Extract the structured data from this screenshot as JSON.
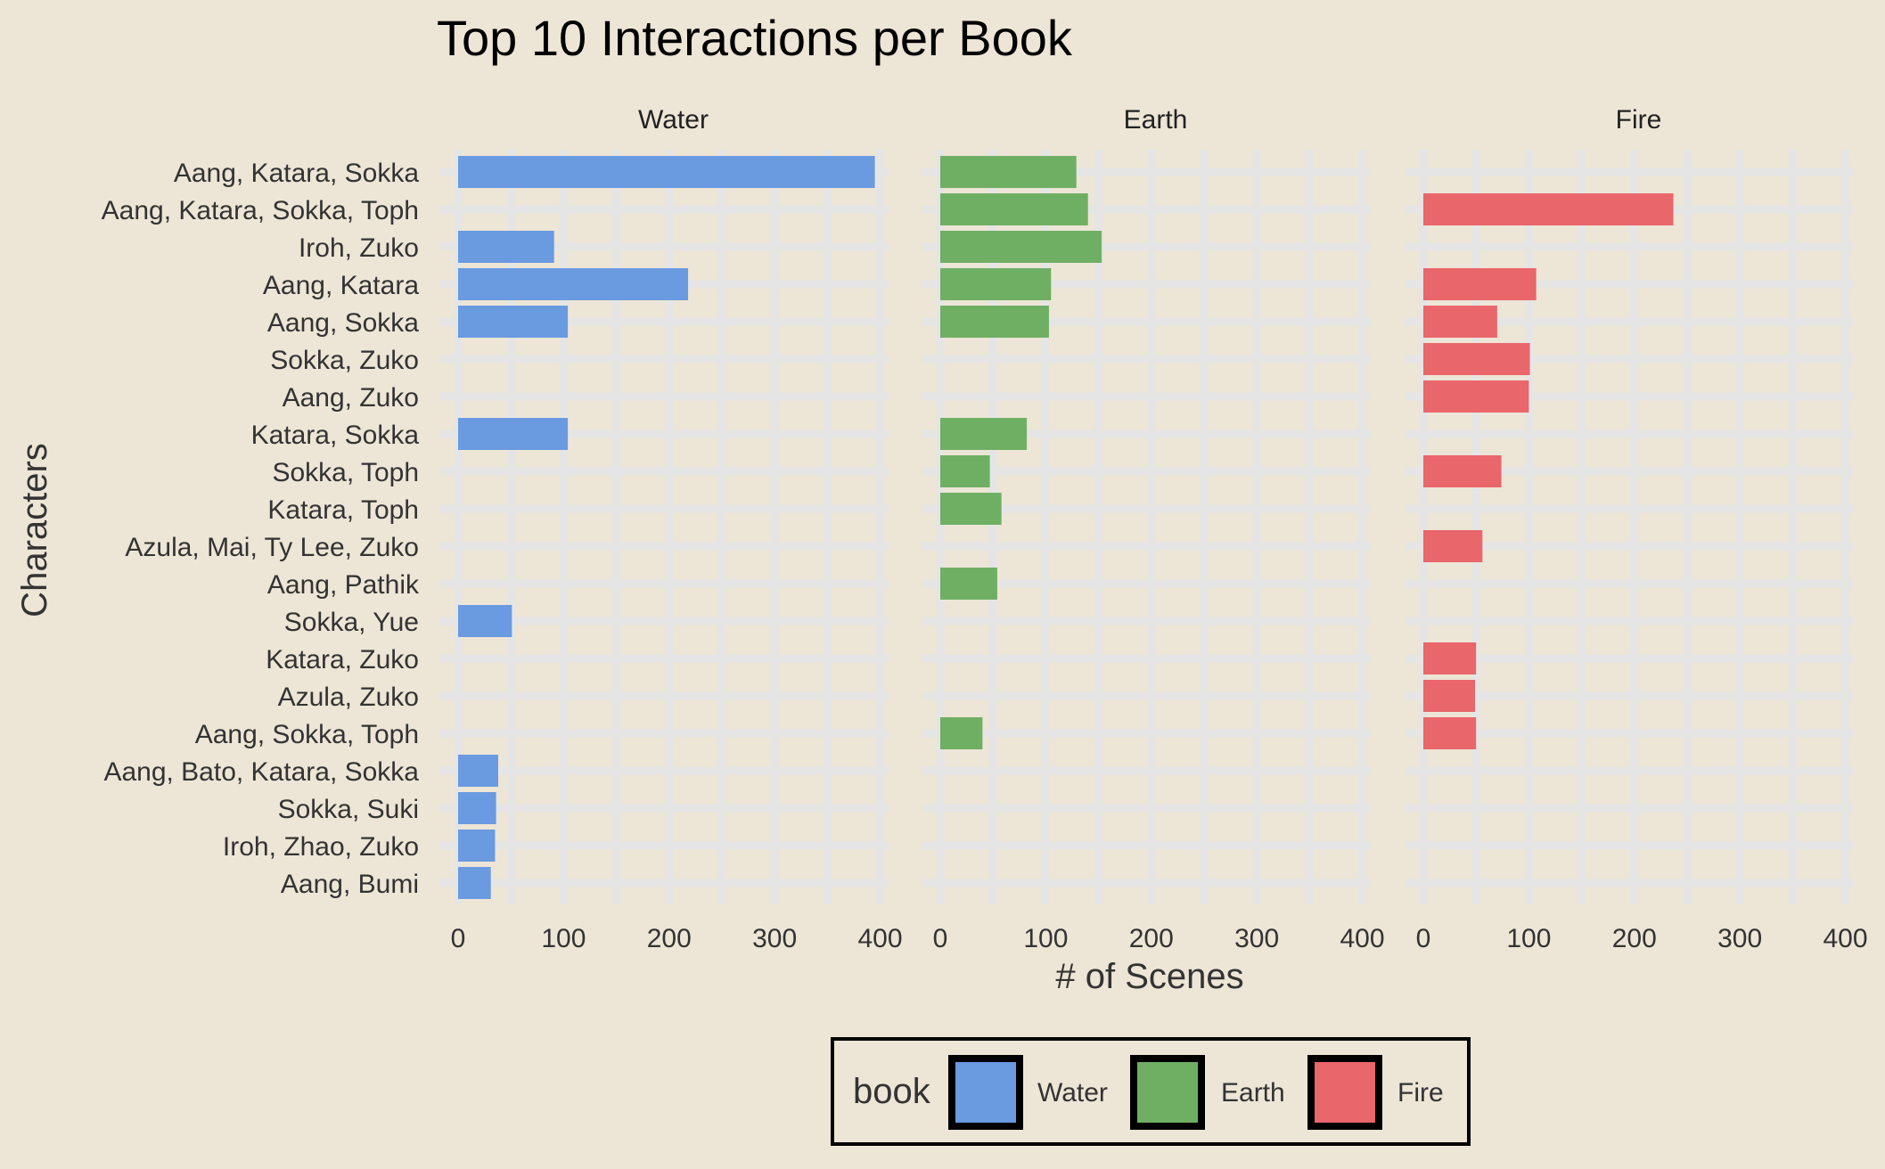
{
  "chart_data": {
    "type": "bar",
    "orientation": "horizontal",
    "faceted": true,
    "title": "Top 10 Interactions per Book",
    "xlabel": "# of Scenes",
    "ylabel": "Characters",
    "xlim": [
      0,
      400
    ],
    "xticks": [
      0,
      100,
      200,
      300,
      400
    ],
    "grid": true,
    "legend": {
      "title": "book",
      "placement": "bottom",
      "entries": [
        "Water",
        "Earth",
        "Fire"
      ]
    },
    "categories": [
      "Aang, Katara, Sokka",
      "Aang, Katara, Sokka, Toph",
      "Iroh, Zuko",
      "Aang, Katara",
      "Aang, Sokka",
      "Sokka, Zuko",
      "Aang, Zuko",
      "Katara, Sokka",
      "Sokka, Toph",
      "Katara, Toph",
      "Azula, Mai, Ty Lee, Zuko",
      "Aang, Pathik",
      "Sokka, Yue",
      "Katara, Zuko",
      "Azula, Zuko",
      "Aang, Sokka, Toph",
      "Aang, Bato, Katara, Sokka",
      "Sokka, Suki",
      "Iroh, Zhao, Zuko",
      "Aang, Bumi"
    ],
    "series": [
      {
        "name": "Water",
        "color": "#6A9AE0",
        "values": [
          395,
          null,
          91,
          218,
          104,
          null,
          null,
          104,
          null,
          null,
          null,
          null,
          51,
          null,
          null,
          null,
          38,
          36,
          35,
          31
        ]
      },
      {
        "name": "Earth",
        "color": "#6FAF64",
        "values": [
          129,
          140,
          153,
          105,
          103,
          null,
          null,
          82,
          47,
          58,
          null,
          54,
          null,
          null,
          null,
          40,
          null,
          null,
          null,
          null
        ]
      },
      {
        "name": "Fire",
        "color": "#E9666B",
        "values": [
          null,
          237,
          null,
          107,
          70,
          101,
          100,
          null,
          74,
          null,
          56,
          null,
          null,
          50,
          49,
          50,
          null,
          null,
          null,
          null
        ]
      }
    ]
  }
}
